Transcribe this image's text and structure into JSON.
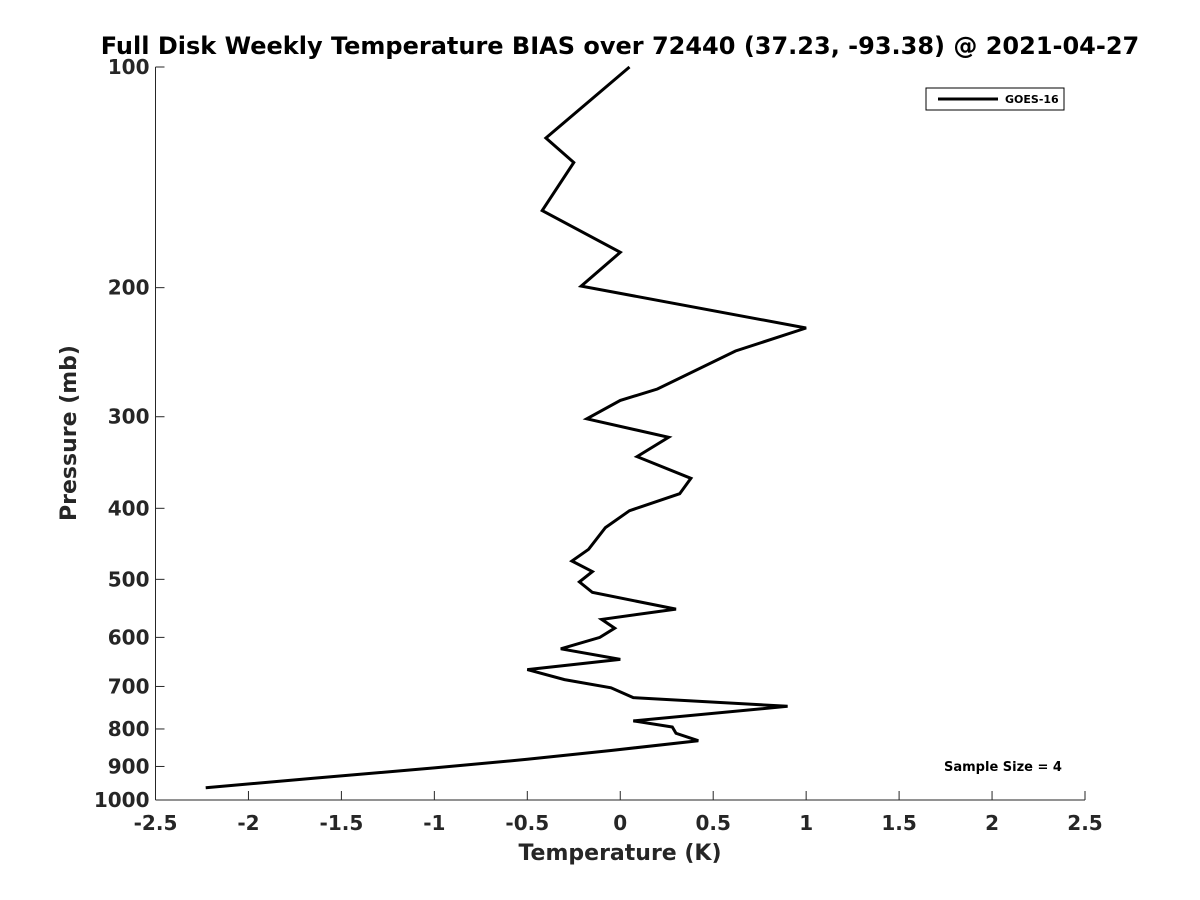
{
  "chart_data": {
    "type": "line",
    "title": "Full Disk Weekly Temperature BIAS over 72440 (37.23, -93.38) @ 2021-04-27",
    "xlabel": "Temperature (K)",
    "ylabel": "Pressure (mb)",
    "xlim": [
      -2.5,
      2.5
    ],
    "ylim": [
      1000,
      100
    ],
    "yscale": "log",
    "y_reversed": true,
    "xticks": [
      -2.5,
      -2,
      -1.5,
      -1,
      -0.5,
      0,
      0.5,
      1,
      1.5,
      2,
      2.5
    ],
    "xtick_labels": [
      "-2.5",
      "-2",
      "-1.5",
      "-1",
      "-0.5",
      "0",
      "0.5",
      "1",
      "1.5",
      "2",
      "2.5"
    ],
    "yticks": [
      100,
      200,
      300,
      400,
      500,
      600,
      700,
      800,
      900,
      1000
    ],
    "ytick_labels": [
      "100",
      "200",
      "300",
      "400",
      "500",
      "600",
      "700",
      "800",
      "900",
      "1000"
    ],
    "grid": false,
    "legend_position": "top-right",
    "series": [
      {
        "name": "GOES-16",
        "color": "#000000",
        "points": [
          [
            0.05,
            100
          ],
          [
            -0.4,
            125
          ],
          [
            -0.25,
            135
          ],
          [
            -0.42,
            157
          ],
          [
            0.0,
            179
          ],
          [
            -0.21,
            199
          ],
          [
            1.0,
            227
          ],
          [
            0.62,
            244
          ],
          [
            0.2,
            275
          ],
          [
            0.0,
            285
          ],
          [
            -0.18,
            302
          ],
          [
            0.26,
            320
          ],
          [
            0.09,
            340
          ],
          [
            0.38,
            364
          ],
          [
            0.32,
            382
          ],
          [
            0.05,
            403
          ],
          [
            -0.08,
            425
          ],
          [
            -0.17,
            455
          ],
          [
            -0.26,
            472
          ],
          [
            -0.15,
            488
          ],
          [
            -0.22,
            504
          ],
          [
            -0.15,
            521
          ],
          [
            0.3,
            549
          ],
          [
            -0.1,
            567
          ],
          [
            -0.03,
            583
          ],
          [
            -0.11,
            600
          ],
          [
            -0.32,
            622
          ],
          [
            0.0,
            643
          ],
          [
            -0.5,
            664
          ],
          [
            -0.3,
            685
          ],
          [
            -0.05,
            703
          ],
          [
            0.07,
            725
          ],
          [
            0.9,
            745
          ],
          [
            0.07,
            780
          ],
          [
            0.28,
            795
          ],
          [
            0.3,
            811
          ],
          [
            0.42,
            830
          ],
          [
            -0.05,
            856
          ],
          [
            -0.5,
            880
          ],
          [
            -1.0,
            904
          ],
          [
            -1.65,
            934
          ],
          [
            -2.23,
            962
          ]
        ]
      }
    ],
    "annotations": [
      "Sample Size = 4"
    ]
  }
}
